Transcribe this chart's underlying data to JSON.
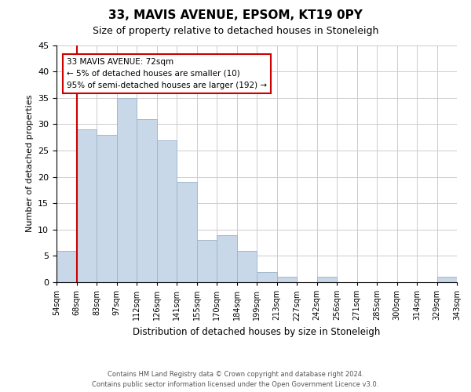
{
  "title": "33, MAVIS AVENUE, EPSOM, KT19 0PY",
  "subtitle": "Size of property relative to detached houses in Stoneleigh",
  "xlabel": "Distribution of detached houses by size in Stoneleigh",
  "ylabel": "Number of detached properties",
  "footer_line1": "Contains HM Land Registry data © Crown copyright and database right 2024.",
  "footer_line2": "Contains public sector information licensed under the Open Government Licence v3.0.",
  "bin_labels": [
    "54sqm",
    "68sqm",
    "83sqm",
    "97sqm",
    "112sqm",
    "126sqm",
    "141sqm",
    "155sqm",
    "170sqm",
    "184sqm",
    "199sqm",
    "213sqm",
    "227sqm",
    "242sqm",
    "256sqm",
    "271sqm",
    "285sqm",
    "300sqm",
    "314sqm",
    "329sqm",
    "343sqm"
  ],
  "bar_values": [
    6,
    29,
    28,
    35,
    31,
    27,
    19,
    8,
    9,
    6,
    2,
    1,
    0,
    1,
    0,
    0,
    0,
    0,
    0,
    1
  ],
  "bar_color": "#c8d8e8",
  "bar_edge_color": "#a0b8cc",
  "property_line_x": 1,
  "annotation_title": "33 MAVIS AVENUE: 72sqm",
  "annotation_line1": "← 5% of detached houses are smaller (10)",
  "annotation_line2": "95% of semi-detached houses are larger (192) →",
  "annotation_box_color": "#ffffff",
  "annotation_box_edge": "#cc0000",
  "property_line_color": "#cc0000",
  "ylim": [
    0,
    45
  ],
  "yticks": [
    0,
    5,
    10,
    15,
    20,
    25,
    30,
    35,
    40,
    45
  ],
  "background_color": "#ffffff",
  "grid_color": "#cccccc"
}
